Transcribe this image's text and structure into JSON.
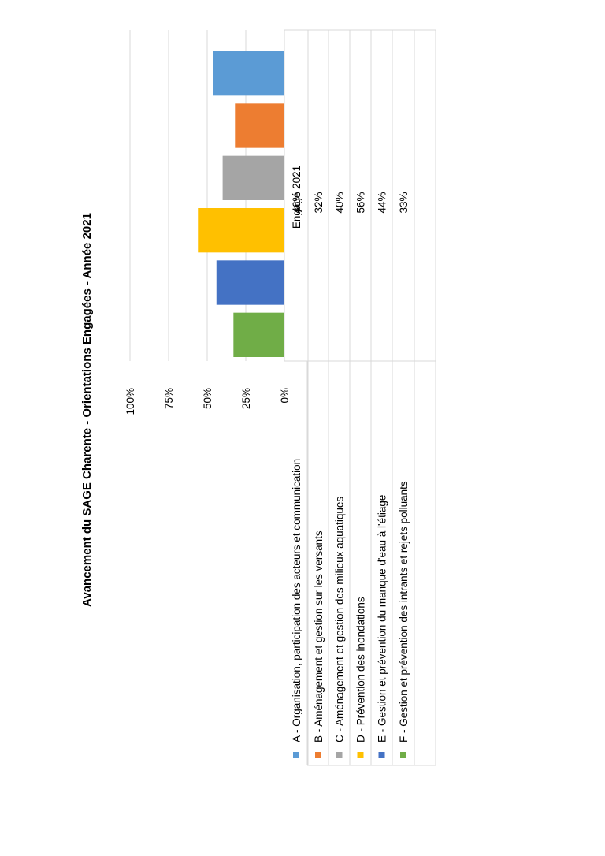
{
  "chart_data": {
    "type": "bar",
    "title": "Avancement du SAGE Charente -  Orientations Engagées - Année 2021",
    "ylim": [
      0,
      1
    ],
    "yticks": [
      "0%",
      "25%",
      "50%",
      "75%",
      "100%"
    ],
    "grid": true,
    "legend_position": "table",
    "table_header": "Engagé 2021",
    "series_label": "Engagé 2021",
    "categories": [
      "A - Organisation, participation des acteurs et communication",
      "B - Aménagement et gestion sur les versants",
      "C - Aménagement et gestion des milieux aquatiques",
      "D - Prévention des inondations",
      "E - Gestion et prévention du manque d'eau à l'étiage",
      "F - Gestion et prévention des intrants et rejets polluants"
    ],
    "values": [
      0.46,
      0.32,
      0.4,
      0.56,
      0.44,
      0.33
    ],
    "value_labels": [
      "46%",
      "32%",
      "40%",
      "56%",
      "44%",
      "33%"
    ],
    "colors": [
      "#5b9bd5",
      "#ed7d31",
      "#a5a5a5",
      "#ffc000",
      "#4472c4",
      "#70ad47"
    ]
  }
}
